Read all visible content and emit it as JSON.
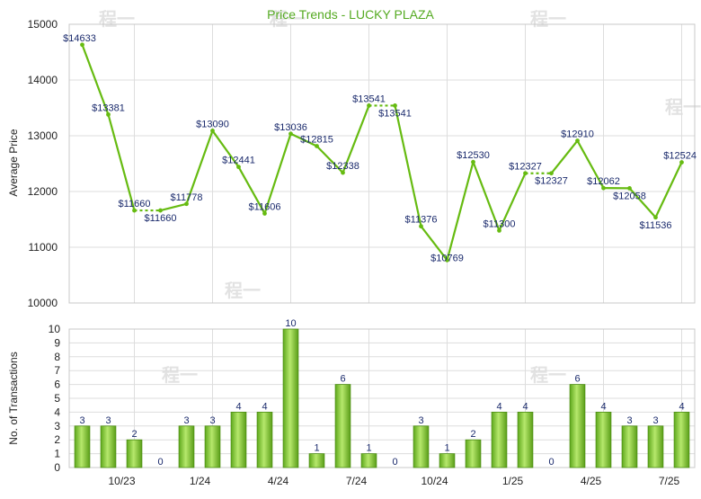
{
  "chart_data": [
    {
      "type": "line",
      "title": "Price Trends - LUCKY PLAZA",
      "ylabel": "Average Price",
      "xlabel": "",
      "ylim": [
        10000,
        15000
      ],
      "yticks": [
        "10000",
        "11000",
        "12000",
        "13000",
        "14000",
        "15000"
      ],
      "grid": true,
      "line_color": "#66bb11",
      "title_color": "#55aa22",
      "series": [
        {
          "values": [
            14633,
            13381,
            11660,
            11660,
            11778,
            13090,
            12441,
            11606,
            13036,
            12815,
            12338,
            13541,
            13541,
            11376,
            10769,
            12530,
            11300,
            12327,
            12327,
            12910,
            12062,
            12058,
            11536,
            12524
          ],
          "labels": [
            "$14633",
            "$13381",
            "$11660",
            "$11660",
            "$11778",
            "$13090",
            "$12441",
            "$11606",
            "$13036",
            "$12815",
            "$12338",
            "$13541",
            "$13541",
            "$11376",
            "$10769",
            "$12530",
            "$11300",
            "$12327",
            "$12327",
            "$12910",
            "$12062",
            "$12058",
            "$11536",
            "$12524"
          ],
          "flat_after_zero": [
            2,
            11,
            17
          ]
        }
      ]
    },
    {
      "type": "bar",
      "ylabel": "No. of Transactions",
      "ylim": [
        0,
        10
      ],
      "yticks": [
        "0",
        "1",
        "2",
        "3",
        "4",
        "5",
        "6",
        "7",
        "8",
        "9",
        "10"
      ],
      "grid": true,
      "bar_color": "#77c22a",
      "x_tick_labels": [
        "10/23",
        "1/24",
        "4/24",
        "7/24",
        "10/24",
        "1/25",
        "4/25",
        "7/25"
      ],
      "x_tick_positions": [
        2.5,
        5.5,
        8.5,
        11.5,
        14.5,
        17.5,
        20.5,
        23.5
      ],
      "values": [
        3,
        3,
        2,
        0,
        3,
        3,
        4,
        4,
        10,
        1,
        6,
        1,
        0,
        3,
        1,
        2,
        4,
        4,
        0,
        6,
        4,
        3,
        3,
        4
      ],
      "labels": [
        "3",
        "3",
        "2",
        "0",
        "3",
        "3",
        "4",
        "4",
        "10",
        "1",
        "6",
        "1",
        "0",
        "3",
        "1",
        "2",
        "4",
        "4",
        "0",
        "6",
        "4",
        "3",
        "3",
        "4"
      ]
    }
  ],
  "watermark": "程一"
}
